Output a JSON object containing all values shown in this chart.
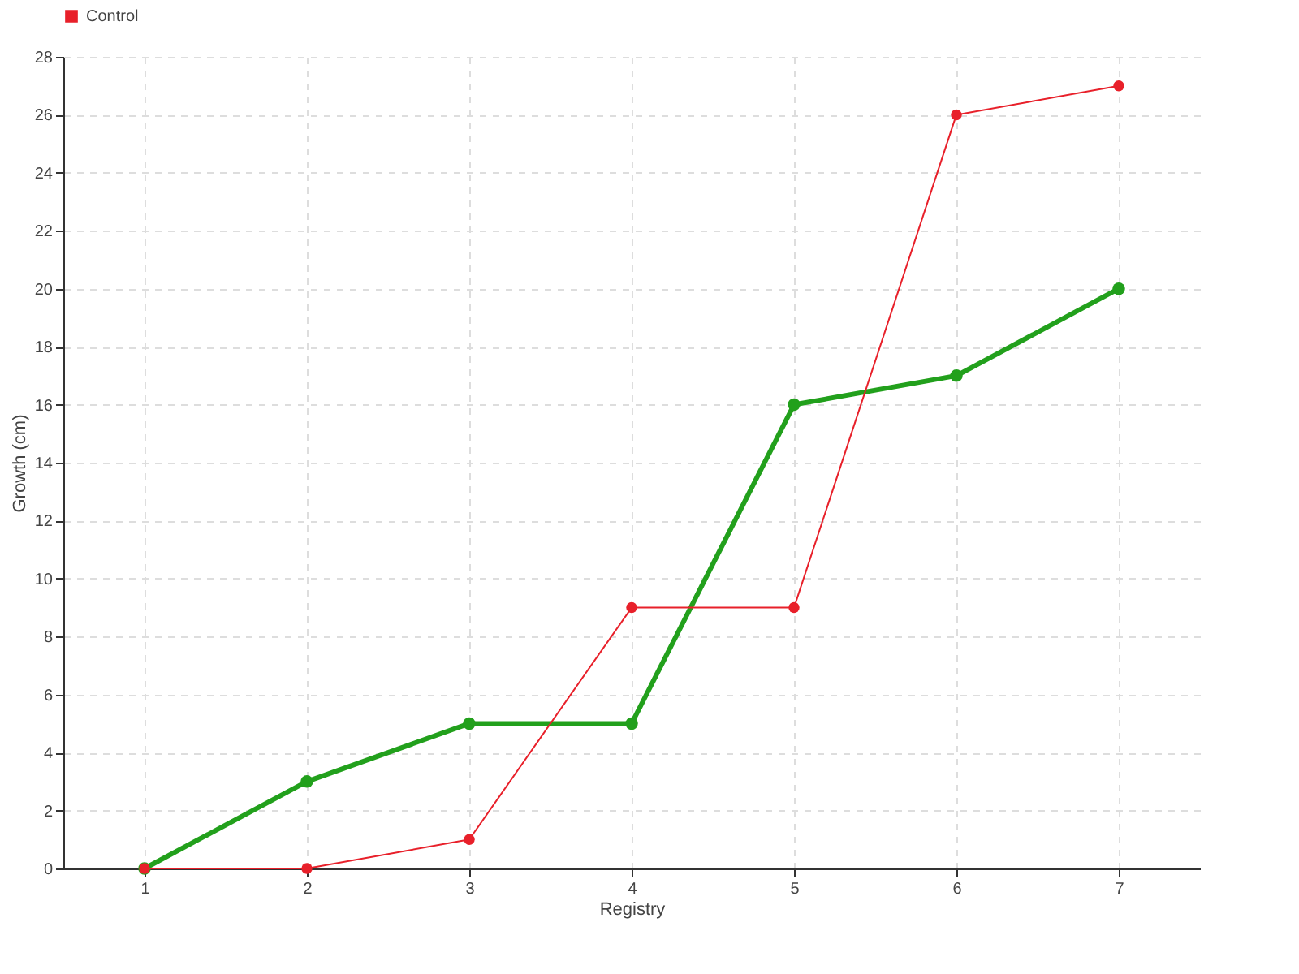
{
  "chart_data": {
    "type": "line",
    "xlabel": "Registry",
    "ylabel": "Growth (cm)",
    "x": [
      1,
      2,
      3,
      4,
      5,
      6,
      7
    ],
    "series": [
      {
        "color": "#22a01c",
        "values": [
          0,
          3,
          5,
          5,
          16,
          17,
          20
        ]
      },
      {
        "name": "Control",
        "color": "#e8202a",
        "values": [
          0,
          0,
          1,
          9,
          9,
          26,
          27
        ]
      }
    ],
    "xlim": [
      0.5,
      7.5
    ],
    "xticks": [
      1,
      2,
      3,
      4,
      5,
      6,
      7
    ],
    "ylim": [
      0,
      28
    ],
    "yticks": [
      0,
      2,
      4,
      6,
      8,
      10,
      12,
      14,
      16,
      18,
      20,
      22,
      24,
      26,
      28
    ],
    "grid": true,
    "legend": "top left",
    "marker": "circle",
    "line_style": "solid"
  }
}
